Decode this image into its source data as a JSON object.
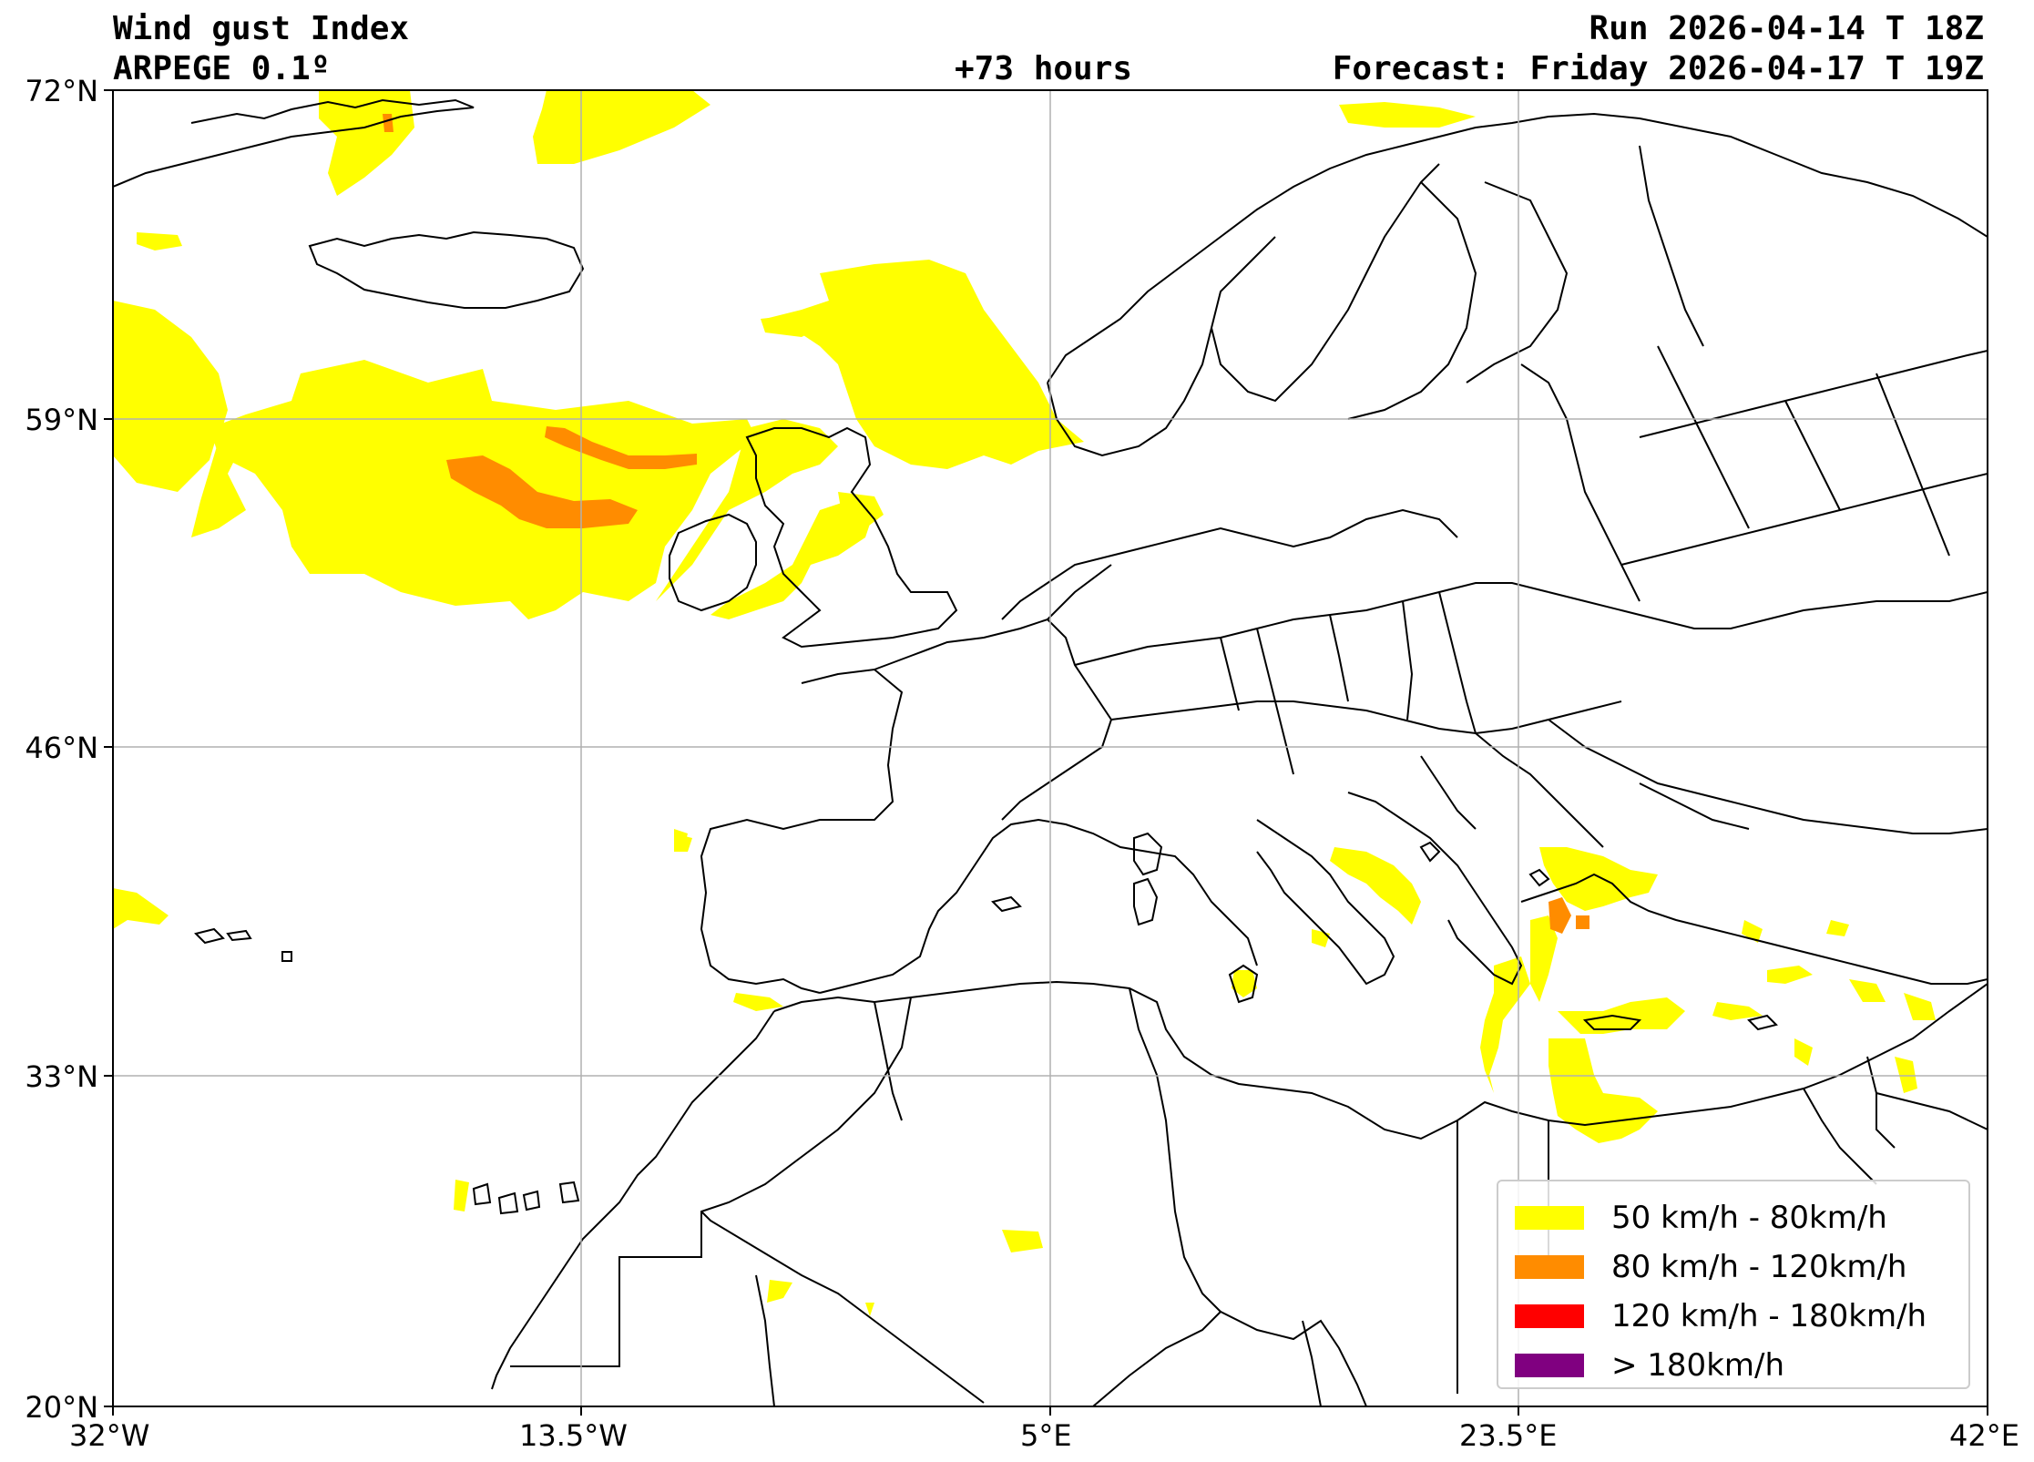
{
  "header": {
    "title": "Wind gust Index",
    "model": "ARPEGE 0.1º",
    "lead_time": "+73 hours",
    "run": "Run 2026-04-14 T 18Z",
    "forecast": "Forecast: Friday 2026-04-17 T 19Z"
  },
  "axes": {
    "lat_ticks": [
      "72°N",
      "59°N",
      "46°N",
      "33°N",
      "20°N"
    ],
    "lon_ticks": [
      "32°W",
      "13.5°W",
      "5°E",
      "23.5°E",
      "42°E"
    ]
  },
  "legend": {
    "items": [
      {
        "label": "50 km/h - 80km/h",
        "color": "#ffff00"
      },
      {
        "label": "80 km/h - 120km/h",
        "color": "#ff8c00"
      },
      {
        "label": "120 km/h - 180km/h",
        "color": "#ff0000"
      },
      {
        "label": "> 180km/h",
        "color": "#800080"
      }
    ]
  },
  "colors": {
    "gust_50_80": "#ffff00",
    "gust_80_120": "#ff8c00",
    "gridline": "#b0b0b0",
    "coastline": "#000000"
  }
}
